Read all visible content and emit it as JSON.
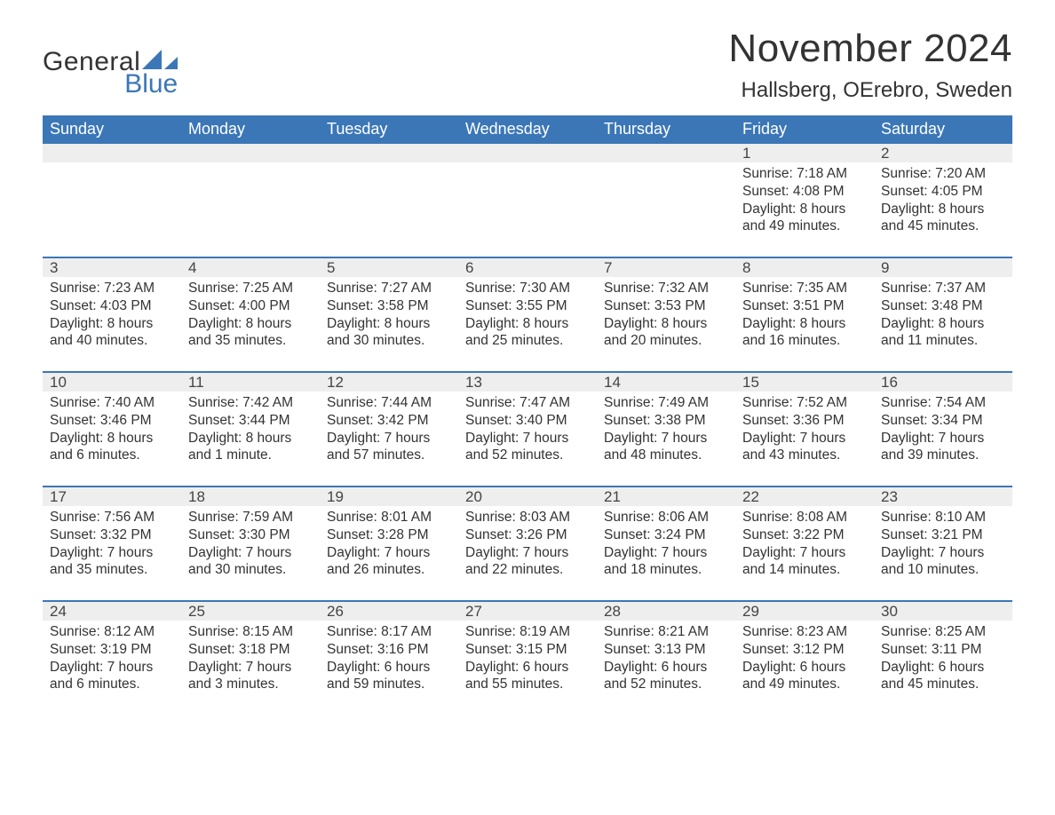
{
  "logo": {
    "word1": "General",
    "word2": "Blue",
    "icon_color": "#3b77b7"
  },
  "title": "November 2024",
  "location": "Hallsberg, OErebro, Sweden",
  "colors": {
    "header_bg": "#3b77b7",
    "header_text": "#ffffff",
    "daynum_bg": "#eeeeee",
    "text": "#333333",
    "rule": "#3b77b7",
    "page_bg": "#ffffff"
  },
  "day_headers": [
    "Sunday",
    "Monday",
    "Tuesday",
    "Wednesday",
    "Thursday",
    "Friday",
    "Saturday"
  ],
  "weeks": [
    [
      {
        "day": null
      },
      {
        "day": null
      },
      {
        "day": null
      },
      {
        "day": null
      },
      {
        "day": null
      },
      {
        "day": 1,
        "sunrise": "Sunrise: 7:18 AM",
        "sunset": "Sunset: 4:08 PM",
        "daylight1": "Daylight: 8 hours",
        "daylight2": "and 49 minutes."
      },
      {
        "day": 2,
        "sunrise": "Sunrise: 7:20 AM",
        "sunset": "Sunset: 4:05 PM",
        "daylight1": "Daylight: 8 hours",
        "daylight2": "and 45 minutes."
      }
    ],
    [
      {
        "day": 3,
        "sunrise": "Sunrise: 7:23 AM",
        "sunset": "Sunset: 4:03 PM",
        "daylight1": "Daylight: 8 hours",
        "daylight2": "and 40 minutes."
      },
      {
        "day": 4,
        "sunrise": "Sunrise: 7:25 AM",
        "sunset": "Sunset: 4:00 PM",
        "daylight1": "Daylight: 8 hours",
        "daylight2": "and 35 minutes."
      },
      {
        "day": 5,
        "sunrise": "Sunrise: 7:27 AM",
        "sunset": "Sunset: 3:58 PM",
        "daylight1": "Daylight: 8 hours",
        "daylight2": "and 30 minutes."
      },
      {
        "day": 6,
        "sunrise": "Sunrise: 7:30 AM",
        "sunset": "Sunset: 3:55 PM",
        "daylight1": "Daylight: 8 hours",
        "daylight2": "and 25 minutes."
      },
      {
        "day": 7,
        "sunrise": "Sunrise: 7:32 AM",
        "sunset": "Sunset: 3:53 PM",
        "daylight1": "Daylight: 8 hours",
        "daylight2": "and 20 minutes."
      },
      {
        "day": 8,
        "sunrise": "Sunrise: 7:35 AM",
        "sunset": "Sunset: 3:51 PM",
        "daylight1": "Daylight: 8 hours",
        "daylight2": "and 16 minutes."
      },
      {
        "day": 9,
        "sunrise": "Sunrise: 7:37 AM",
        "sunset": "Sunset: 3:48 PM",
        "daylight1": "Daylight: 8 hours",
        "daylight2": "and 11 minutes."
      }
    ],
    [
      {
        "day": 10,
        "sunrise": "Sunrise: 7:40 AM",
        "sunset": "Sunset: 3:46 PM",
        "daylight1": "Daylight: 8 hours",
        "daylight2": "and 6 minutes."
      },
      {
        "day": 11,
        "sunrise": "Sunrise: 7:42 AM",
        "sunset": "Sunset: 3:44 PM",
        "daylight1": "Daylight: 8 hours",
        "daylight2": "and 1 minute."
      },
      {
        "day": 12,
        "sunrise": "Sunrise: 7:44 AM",
        "sunset": "Sunset: 3:42 PM",
        "daylight1": "Daylight: 7 hours",
        "daylight2": "and 57 minutes."
      },
      {
        "day": 13,
        "sunrise": "Sunrise: 7:47 AM",
        "sunset": "Sunset: 3:40 PM",
        "daylight1": "Daylight: 7 hours",
        "daylight2": "and 52 minutes."
      },
      {
        "day": 14,
        "sunrise": "Sunrise: 7:49 AM",
        "sunset": "Sunset: 3:38 PM",
        "daylight1": "Daylight: 7 hours",
        "daylight2": "and 48 minutes."
      },
      {
        "day": 15,
        "sunrise": "Sunrise: 7:52 AM",
        "sunset": "Sunset: 3:36 PM",
        "daylight1": "Daylight: 7 hours",
        "daylight2": "and 43 minutes."
      },
      {
        "day": 16,
        "sunrise": "Sunrise: 7:54 AM",
        "sunset": "Sunset: 3:34 PM",
        "daylight1": "Daylight: 7 hours",
        "daylight2": "and 39 minutes."
      }
    ],
    [
      {
        "day": 17,
        "sunrise": "Sunrise: 7:56 AM",
        "sunset": "Sunset: 3:32 PM",
        "daylight1": "Daylight: 7 hours",
        "daylight2": "and 35 minutes."
      },
      {
        "day": 18,
        "sunrise": "Sunrise: 7:59 AM",
        "sunset": "Sunset: 3:30 PM",
        "daylight1": "Daylight: 7 hours",
        "daylight2": "and 30 minutes."
      },
      {
        "day": 19,
        "sunrise": "Sunrise: 8:01 AM",
        "sunset": "Sunset: 3:28 PM",
        "daylight1": "Daylight: 7 hours",
        "daylight2": "and 26 minutes."
      },
      {
        "day": 20,
        "sunrise": "Sunrise: 8:03 AM",
        "sunset": "Sunset: 3:26 PM",
        "daylight1": "Daylight: 7 hours",
        "daylight2": "and 22 minutes."
      },
      {
        "day": 21,
        "sunrise": "Sunrise: 8:06 AM",
        "sunset": "Sunset: 3:24 PM",
        "daylight1": "Daylight: 7 hours",
        "daylight2": "and 18 minutes."
      },
      {
        "day": 22,
        "sunrise": "Sunrise: 8:08 AM",
        "sunset": "Sunset: 3:22 PM",
        "daylight1": "Daylight: 7 hours",
        "daylight2": "and 14 minutes."
      },
      {
        "day": 23,
        "sunrise": "Sunrise: 8:10 AM",
        "sunset": "Sunset: 3:21 PM",
        "daylight1": "Daylight: 7 hours",
        "daylight2": "and 10 minutes."
      }
    ],
    [
      {
        "day": 24,
        "sunrise": "Sunrise: 8:12 AM",
        "sunset": "Sunset: 3:19 PM",
        "daylight1": "Daylight: 7 hours",
        "daylight2": "and 6 minutes."
      },
      {
        "day": 25,
        "sunrise": "Sunrise: 8:15 AM",
        "sunset": "Sunset: 3:18 PM",
        "daylight1": "Daylight: 7 hours",
        "daylight2": "and 3 minutes."
      },
      {
        "day": 26,
        "sunrise": "Sunrise: 8:17 AM",
        "sunset": "Sunset: 3:16 PM",
        "daylight1": "Daylight: 6 hours",
        "daylight2": "and 59 minutes."
      },
      {
        "day": 27,
        "sunrise": "Sunrise: 8:19 AM",
        "sunset": "Sunset: 3:15 PM",
        "daylight1": "Daylight: 6 hours",
        "daylight2": "and 55 minutes."
      },
      {
        "day": 28,
        "sunrise": "Sunrise: 8:21 AM",
        "sunset": "Sunset: 3:13 PM",
        "daylight1": "Daylight: 6 hours",
        "daylight2": "and 52 minutes."
      },
      {
        "day": 29,
        "sunrise": "Sunrise: 8:23 AM",
        "sunset": "Sunset: 3:12 PM",
        "daylight1": "Daylight: 6 hours",
        "daylight2": "and 49 minutes."
      },
      {
        "day": 30,
        "sunrise": "Sunrise: 8:25 AM",
        "sunset": "Sunset: 3:11 PM",
        "daylight1": "Daylight: 6 hours",
        "daylight2": "and 45 minutes."
      }
    ]
  ]
}
